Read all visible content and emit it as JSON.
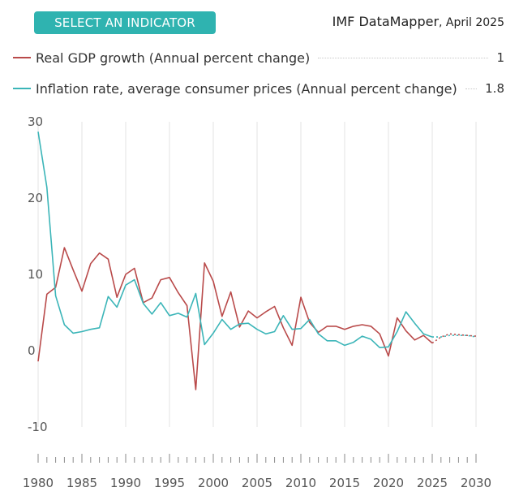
{
  "header": {
    "select_button": "SELECT AN INDICATOR",
    "brand": "IMF DataMapper",
    "date": ", April 2025"
  },
  "legend": [
    {
      "label": "Real GDP growth (Annual percent change)",
      "value": "1",
      "color": "#b94a4a"
    },
    {
      "label": "Inflation rate, average consumer prices (Annual percent change)",
      "value": "1.8",
      "color": "#3bb5b8"
    }
  ],
  "chart_data": {
    "type": "line",
    "title": "",
    "xlabel": "",
    "ylabel": "",
    "xlim": [
      1980,
      2030
    ],
    "ylim": [
      -10,
      30
    ],
    "yticks": [
      -10,
      0,
      10,
      20,
      30
    ],
    "xticks": [
      1980,
      1985,
      1990,
      1995,
      2000,
      2005,
      2010,
      2015,
      2020,
      2025,
      2030
    ],
    "forecast_start": 2025,
    "series": [
      {
        "name": "Real GDP growth (Annual percent change)",
        "color": "#b94a4a",
        "x": [
          1980,
          1981,
          1982,
          1983,
          1984,
          1985,
          1986,
          1987,
          1988,
          1989,
          1990,
          1991,
          1992,
          1993,
          1994,
          1995,
          1996,
          1997,
          1998,
          1999,
          2000,
          2001,
          2002,
          2003,
          2004,
          2005,
          2006,
          2007,
          2008,
          2009,
          2010,
          2011,
          2012,
          2013,
          2014,
          2015,
          2016,
          2017,
          2018,
          2019,
          2020,
          2021,
          2022,
          2023,
          2024,
          2025,
          2026,
          2027,
          2028,
          2029,
          2030
        ],
        "values": [
          -1.4,
          7.4,
          8.3,
          13.5,
          10.6,
          7.8,
          11.4,
          12.8,
          12.0,
          7.0,
          10.0,
          10.8,
          6.3,
          6.9,
          9.3,
          9.6,
          7.6,
          5.9,
          -5.1,
          11.5,
          9.1,
          4.5,
          7.7,
          3.1,
          5.2,
          4.3,
          5.1,
          5.8,
          3.0,
          0.7,
          7.0,
          3.7,
          2.4,
          3.2,
          3.2,
          2.8,
          3.2,
          3.4,
          3.2,
          2.2,
          -0.7,
          4.3,
          2.6,
          1.4,
          2.0,
          1.0,
          1.8,
          2.2,
          2.1,
          2.0,
          1.9
        ]
      },
      {
        "name": "Inflation rate, average consumer prices (Annual percent change)",
        "color": "#3bb5b8",
        "x": [
          1980,
          1981,
          1982,
          1983,
          1984,
          1985,
          1986,
          1987,
          1988,
          1989,
          1990,
          1991,
          1992,
          1993,
          1994,
          1995,
          1996,
          1997,
          1998,
          1999,
          2000,
          2001,
          2002,
          2003,
          2004,
          2005,
          2006,
          2007,
          2008,
          2009,
          2010,
          2011,
          2012,
          2013,
          2014,
          2015,
          2016,
          2017,
          2018,
          2019,
          2020,
          2021,
          2022,
          2023,
          2024,
          2025,
          2026,
          2027,
          2028,
          2029,
          2030
        ],
        "values": [
          28.7,
          21.4,
          7.2,
          3.4,
          2.3,
          2.5,
          2.8,
          3.0,
          7.1,
          5.7,
          8.6,
          9.3,
          6.2,
          4.8,
          6.3,
          4.6,
          4.9,
          4.4,
          7.5,
          0.8,
          2.3,
          4.1,
          2.8,
          3.5,
          3.6,
          2.8,
          2.2,
          2.5,
          4.6,
          2.8,
          2.9,
          4.1,
          2.2,
          1.3,
          1.3,
          0.7,
          1.1,
          1.9,
          1.5,
          0.4,
          0.5,
          2.5,
          5.1,
          3.6,
          2.2,
          1.8,
          1.8,
          2.0,
          2.0,
          2.0,
          1.8
        ]
      }
    ]
  }
}
